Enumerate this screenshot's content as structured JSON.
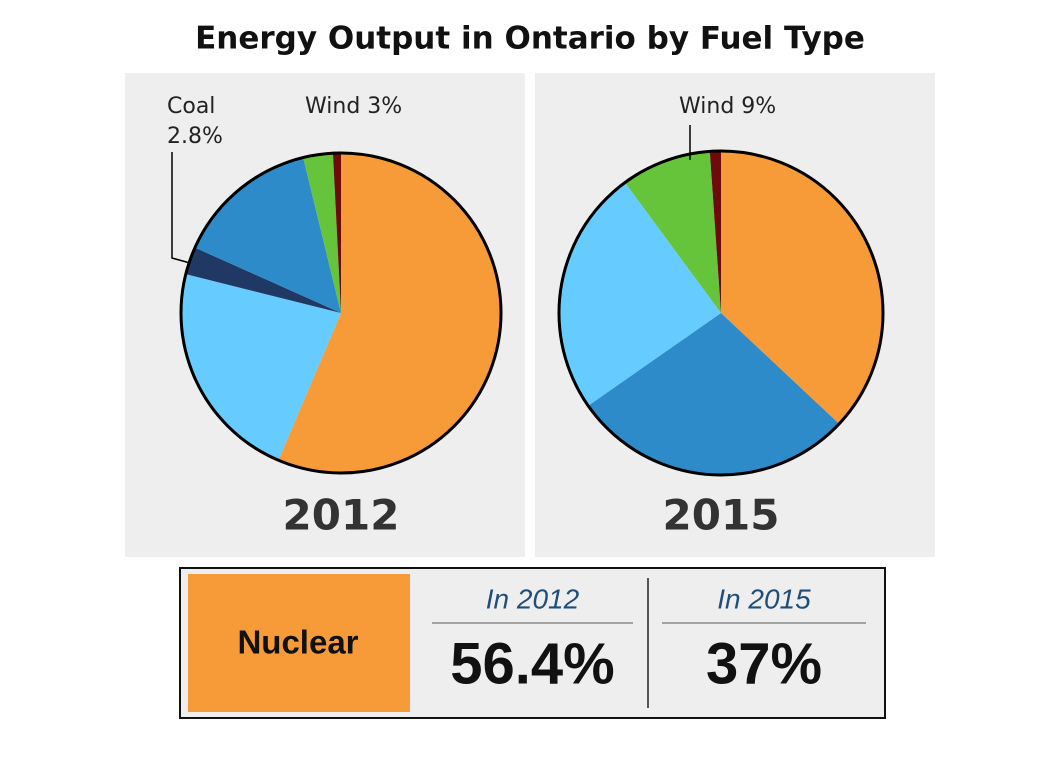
{
  "title": "Energy Output in Ontario by Fuel Type",
  "chart_data": [
    {
      "type": "pie",
      "label": "2012",
      "categories": [
        null,
        null,
        "Coal",
        null,
        "Wind",
        null
      ],
      "values": [
        56.4,
        22.5,
        2.8,
        14.5,
        3,
        0.8
      ],
      "value_labels": [
        null,
        null,
        "2.8%",
        null,
        "3%",
        null
      ],
      "colors": [
        "#f79b38",
        "#66ccff",
        "#1f3864",
        "#2e8bc9",
        "#66c43a",
        "#6e0a0a"
      ]
    },
    {
      "type": "pie",
      "label": "2015",
      "categories": [
        null,
        null,
        null,
        "Wind",
        null
      ],
      "values": [
        37,
        28.3,
        24.6,
        9,
        1.1
      ],
      "value_labels": [
        null,
        null,
        null,
        "9%",
        null
      ],
      "colors": [
        "#f79b38",
        "#2e8bc9",
        "#66ccff",
        "#66c43a",
        "#6e0a0a"
      ]
    }
  ],
  "summary": {
    "label": "Nuclear",
    "color": "#f79b38",
    "columns": [
      {
        "header": "In 2012",
        "value": "56.4%"
      },
      {
        "header": "In 2015",
        "value": "37%"
      }
    ]
  }
}
